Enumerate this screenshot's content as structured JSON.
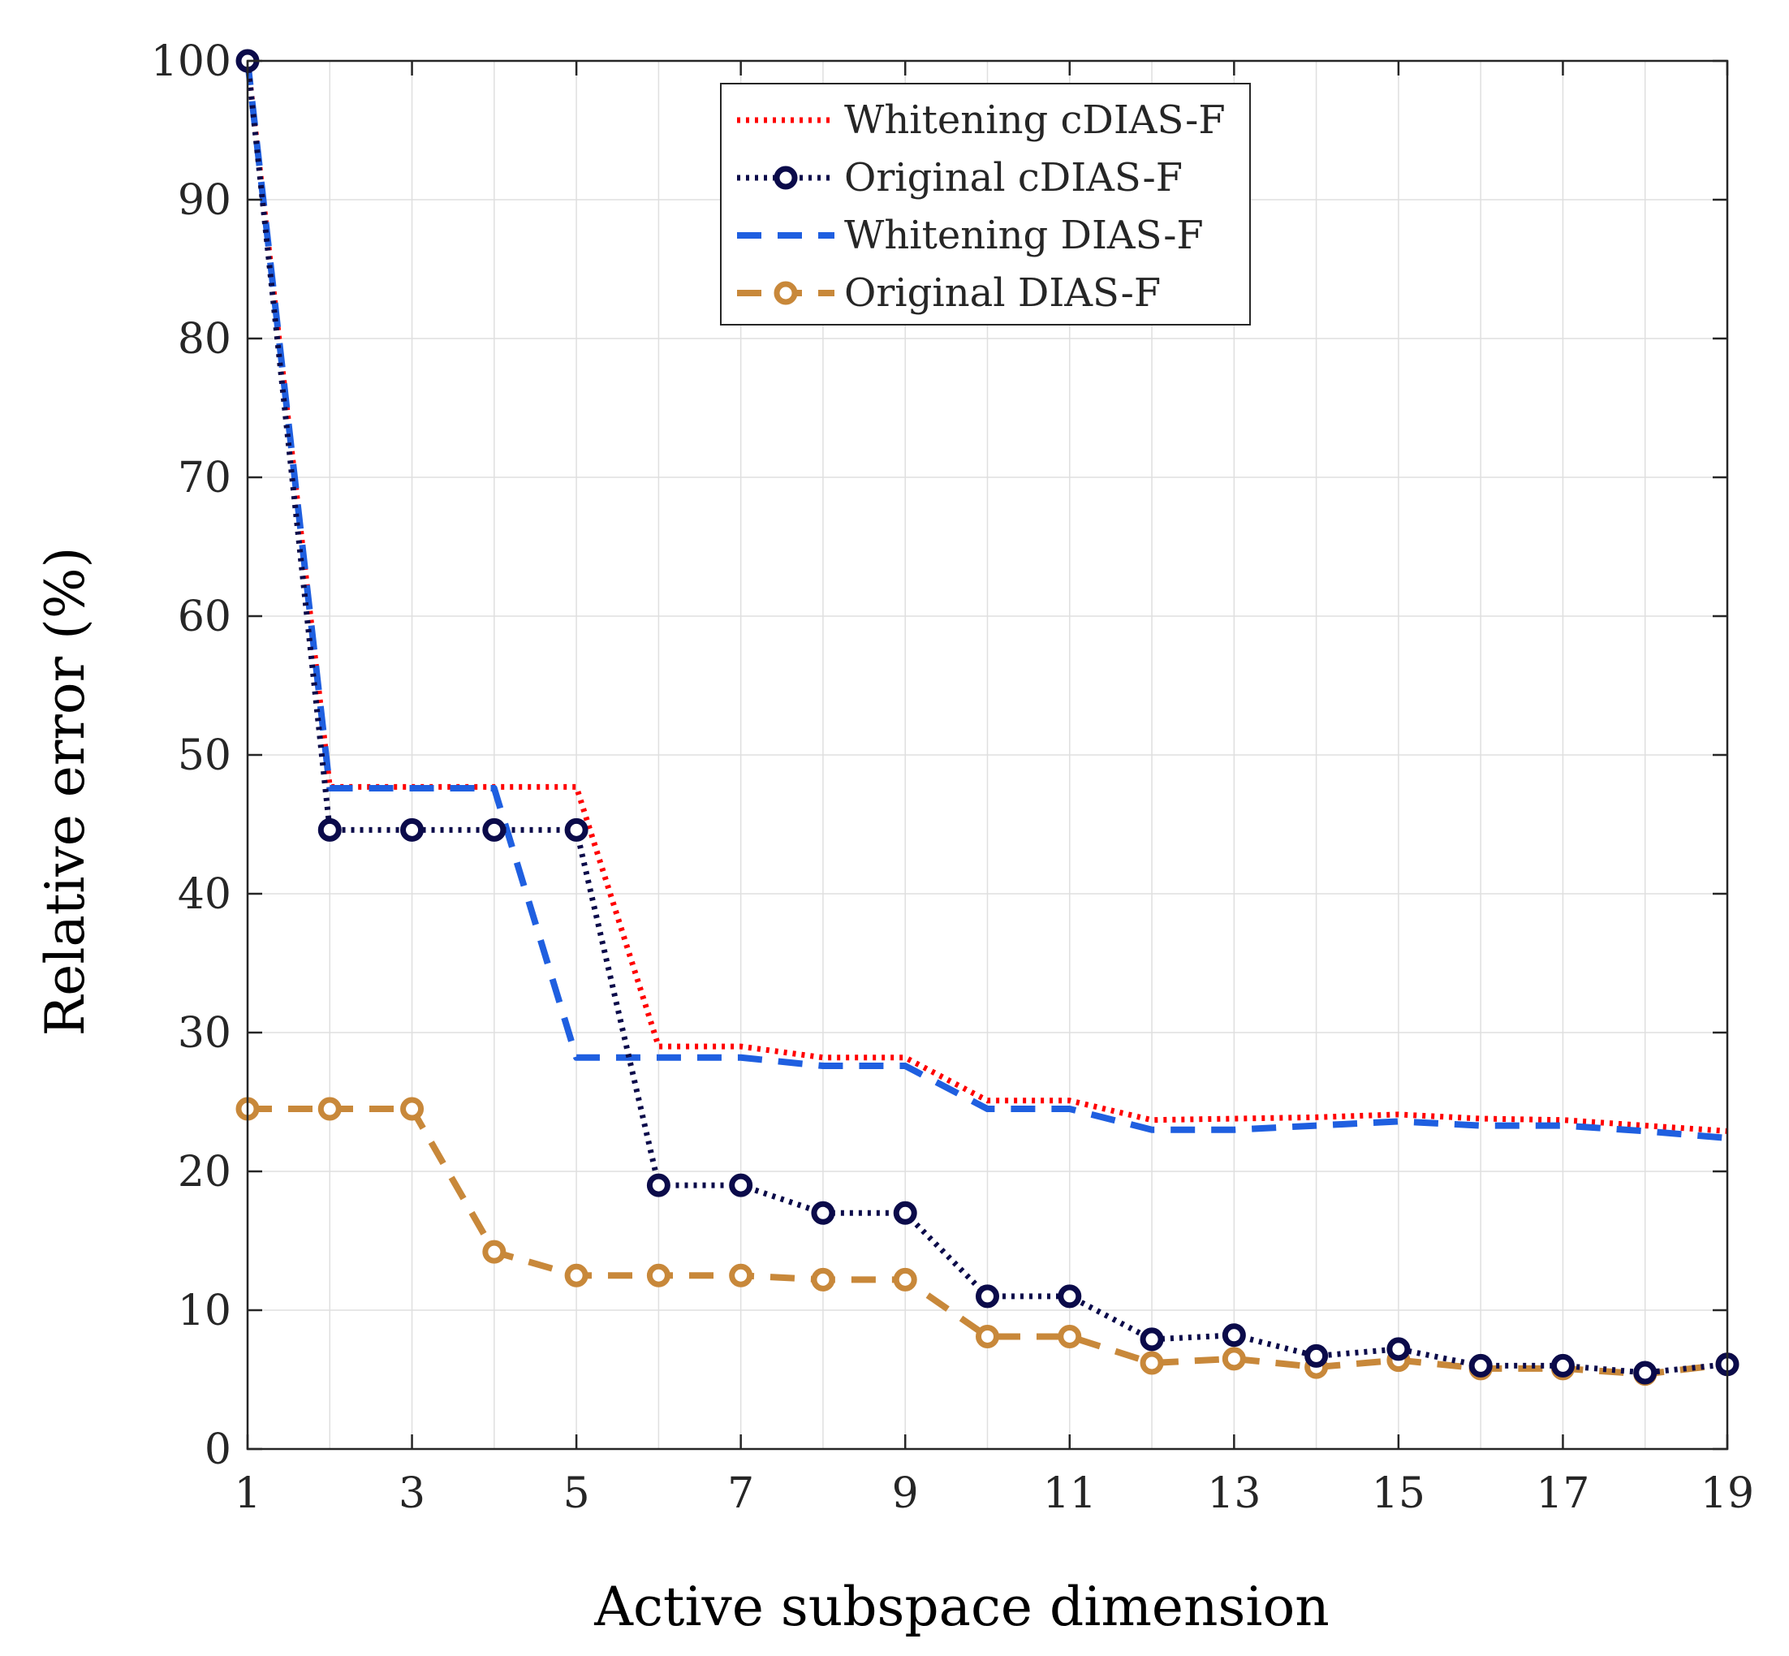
{
  "chart_data": {
    "type": "line",
    "title": "",
    "xlabel": "Active subspace dimension",
    "ylabel": "Relative error (%)",
    "xlim": [
      1,
      19
    ],
    "ylim": [
      0,
      100
    ],
    "xticks": [
      1,
      3,
      5,
      7,
      9,
      11,
      13,
      15,
      17,
      19
    ],
    "yticks": [
      0,
      10,
      20,
      30,
      40,
      50,
      60,
      70,
      80,
      90,
      100
    ],
    "grid": true,
    "legend_position": "top-center",
    "x": [
      1,
      2,
      3,
      4,
      5,
      6,
      7,
      8,
      9,
      10,
      11,
      12,
      13,
      14,
      15,
      16,
      17,
      18,
      19
    ],
    "series": [
      {
        "name": "Whitening cDIAS-F",
        "color": "#ff0000",
        "style": "dotted",
        "marker": "none",
        "values": [
          100,
          47.7,
          47.7,
          47.7,
          47.7,
          29.0,
          29.0,
          28.2,
          28.2,
          25.1,
          25.1,
          23.7,
          23.8,
          23.9,
          24.1,
          23.8,
          23.7,
          23.3,
          22.9
        ]
      },
      {
        "name": "Original cDIAS-F",
        "color": "#0b0b4a",
        "style": "dotted",
        "marker": "circle",
        "values": [
          100,
          44.6,
          44.6,
          44.6,
          44.6,
          19.0,
          19.0,
          17.0,
          17.0,
          11.0,
          11.0,
          7.9,
          8.2,
          6.7,
          7.2,
          6.0,
          6.0,
          5.5,
          6.1
        ]
      },
      {
        "name": "Whitening DIAS-F",
        "color": "#1f5fe0",
        "style": "dashed",
        "marker": "none",
        "values": [
          100,
          47.6,
          47.6,
          47.6,
          28.2,
          28.2,
          28.2,
          27.6,
          27.6,
          24.5,
          24.5,
          23.0,
          23.0,
          23.3,
          23.6,
          23.3,
          23.3,
          22.9,
          22.4
        ]
      },
      {
        "name": "Original DIAS-F",
        "color": "#c8883a",
        "style": "dashed",
        "marker": "circle",
        "values": [
          24.5,
          24.5,
          24.5,
          14.2,
          12.5,
          12.5,
          12.5,
          12.2,
          12.2,
          8.1,
          8.1,
          6.2,
          6.5,
          5.9,
          6.4,
          5.8,
          5.8,
          5.4,
          6.1
        ]
      }
    ]
  }
}
